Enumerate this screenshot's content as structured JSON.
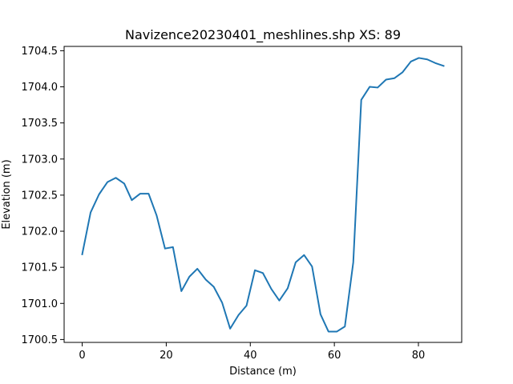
{
  "chart_data": {
    "type": "line",
    "title": "Navizence20230401_meshlines.shp XS: 89",
    "xlabel": "Distance (m)",
    "ylabel": "Elevation (m)",
    "xlim": [
      -4.3,
      90.3
    ],
    "ylim": [
      1700.46,
      1704.56
    ],
    "x_ticks": [
      0,
      20,
      40,
      60,
      80
    ],
    "x_tick_labels": [
      "0",
      "20",
      "40",
      "60",
      "80"
    ],
    "y_ticks": [
      1700.5,
      1701.0,
      1701.5,
      1702.0,
      1702.5,
      1703.0,
      1703.5,
      1704.0,
      1704.5
    ],
    "y_tick_labels": [
      "1700.5",
      "1701.0",
      "1701.5",
      "1702.0",
      "1702.5",
      "1703.0",
      "1703.5",
      "1704.0",
      "1704.5"
    ],
    "grid": false,
    "series": [
      {
        "color": "#1f77b4",
        "x": [
          0,
          2,
          4,
          6,
          8,
          10,
          11.8,
          13.8,
          15.8,
          17.7,
          19.7,
          21.6,
          23.6,
          25.5,
          27.4,
          29.4,
          31.3,
          33.3,
          35.2,
          37.2,
          39.1,
          41.1,
          43.0,
          45.0,
          46.9,
          48.9,
          50.8,
          52.8,
          54.7,
          56.7,
          58.6,
          60.6,
          62.5,
          64.5,
          66.4,
          68.4,
          70.3,
          72.3,
          74.3,
          76.2,
          78.2,
          80.1,
          82.1,
          84.0,
          86.0
        ],
        "y": [
          1701.68,
          1702.26,
          1702.51,
          1702.68,
          1702.74,
          1702.66,
          1702.43,
          1702.52,
          1702.52,
          1702.22,
          1701.76,
          1701.78,
          1701.17,
          1701.37,
          1701.48,
          1701.33,
          1701.23,
          1701.01,
          1700.65,
          1700.84,
          1700.97,
          1701.46,
          1701.42,
          1701.2,
          1701.04,
          1701.21,
          1701.57,
          1701.67,
          1701.51,
          1700.85,
          1700.61,
          1700.61,
          1700.68,
          1701.57,
          1703.82,
          1704.0,
          1703.99,
          1704.1,
          1704.12,
          1704.2,
          1704.35,
          1704.4,
          1704.38,
          1704.33,
          1704.29
        ]
      }
    ]
  }
}
